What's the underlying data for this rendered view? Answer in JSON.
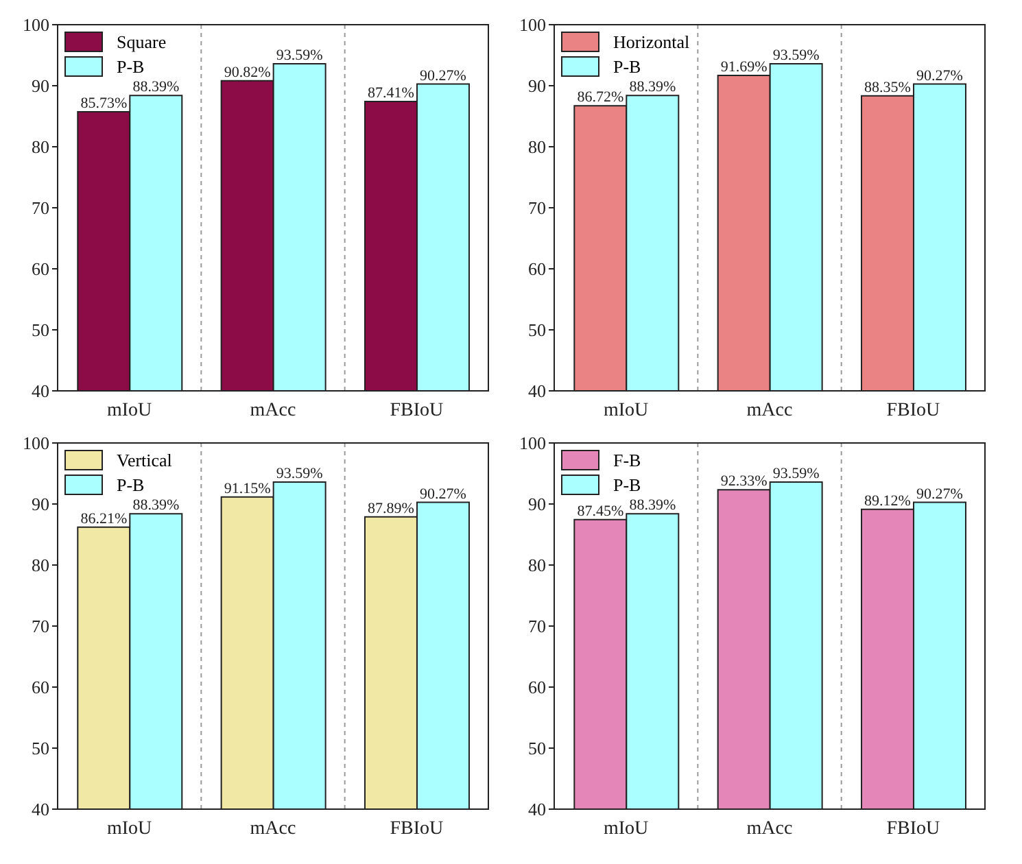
{
  "chart_data": [
    {
      "type": "bar",
      "categories": [
        "mIoU",
        "mAcc",
        "FBIoU"
      ],
      "ylim": [
        40,
        100
      ],
      "yticks": [
        40,
        50,
        60,
        70,
        80,
        90,
        100
      ],
      "grid": "x",
      "legend": "top left",
      "series": [
        {
          "name": "Square",
          "color": "#8c0c48",
          "values": [
            85.73,
            90.82,
            87.41
          ],
          "value_labels": [
            "85.73%",
            "90.82%",
            "87.41%"
          ]
        },
        {
          "name": "P-B",
          "color": "#aaffff",
          "values": [
            88.39,
            93.59,
            90.27
          ],
          "value_labels": [
            "88.39%",
            "93.59%",
            "90.27%"
          ]
        }
      ]
    },
    {
      "type": "bar",
      "categories": [
        "mIoU",
        "mAcc",
        "FBIoU"
      ],
      "ylim": [
        40,
        100
      ],
      "yticks": [
        40,
        50,
        60,
        70,
        80,
        90,
        100
      ],
      "grid": "x",
      "legend": "top left",
      "series": [
        {
          "name": "Horizontal",
          "color": "#ea8484",
          "values": [
            86.72,
            91.69,
            88.35
          ],
          "value_labels": [
            "86.72%",
            "91.69%",
            "88.35%"
          ]
        },
        {
          "name": "P-B",
          "color": "#aaffff",
          "values": [
            88.39,
            93.59,
            90.27
          ],
          "value_labels": [
            "88.39%",
            "93.59%",
            "90.27%"
          ]
        }
      ]
    },
    {
      "type": "bar",
      "categories": [
        "mIoU",
        "mAcc",
        "FBIoU"
      ],
      "ylim": [
        40,
        100
      ],
      "yticks": [
        40,
        50,
        60,
        70,
        80,
        90,
        100
      ],
      "grid": "x",
      "legend": "top left",
      "series": [
        {
          "name": "Vertical",
          "color": "#f2e8a6",
          "values": [
            86.21,
            91.15,
            87.89
          ],
          "value_labels": [
            "86.21%",
            "91.15%",
            "87.89%"
          ]
        },
        {
          "name": "P-B",
          "color": "#aaffff",
          "values": [
            88.39,
            93.59,
            90.27
          ],
          "value_labels": [
            "88.39%",
            "93.59%",
            "90.27%"
          ]
        }
      ]
    },
    {
      "type": "bar",
      "categories": [
        "mIoU",
        "mAcc",
        "FBIoU"
      ],
      "ylim": [
        40,
        100
      ],
      "yticks": [
        40,
        50,
        60,
        70,
        80,
        90,
        100
      ],
      "grid": "x",
      "legend": "top left",
      "series": [
        {
          "name": "F-B",
          "color": "#e487b8",
          "values": [
            87.45,
            92.33,
            89.12
          ],
          "value_labels": [
            "87.45%",
            "92.33%",
            "89.12%"
          ]
        },
        {
          "name": "P-B",
          "color": "#aaffff",
          "values": [
            88.39,
            93.59,
            90.27
          ],
          "value_labels": [
            "88.39%",
            "93.59%",
            "90.27%"
          ]
        }
      ]
    }
  ]
}
